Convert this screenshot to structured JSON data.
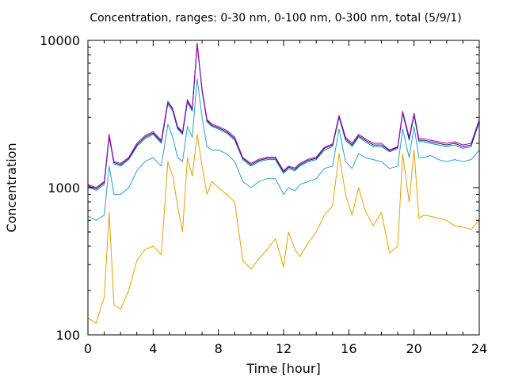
{
  "chart_data": {
    "type": "line",
    "title": "Concentration, ranges: 0-30 nm, 0-100 nm, 0-300 nm, total (5/9/1)",
    "xlabel": "Time [hour]",
    "ylabel": "Concentration",
    "xlim": [
      0,
      24
    ],
    "ylim": [
      100,
      10000
    ],
    "yscale": "log",
    "grid": false,
    "legend": "none",
    "x_ticks": [
      0,
      4,
      8,
      12,
      16,
      20,
      24
    ],
    "x_tick_labels": [
      "0",
      "4",
      "8",
      "12",
      "16",
      "20",
      "24"
    ],
    "y_ticks": [
      100,
      1000,
      10000
    ],
    "y_tick_labels": [
      "100",
      "1000",
      "10000"
    ],
    "x": [
      0,
      0.5,
      1,
      1.3,
      1.6,
      2,
      2.5,
      3,
      3.5,
      4,
      4.5,
      4.9,
      5.2,
      5.5,
      5.8,
      6.1,
      6.4,
      6.7,
      7.0,
      7.3,
      7.6,
      8.0,
      8.5,
      9.0,
      9.5,
      10,
      10.5,
      11,
      11.5,
      12,
      12.3,
      12.7,
      13,
      13.5,
      14,
      14.5,
      15,
      15.4,
      15.8,
      16.2,
      16.6,
      17,
      17.5,
      18,
      18.5,
      19,
      19.3,
      19.7,
      20,
      20.3,
      20.6,
      21,
      21.5,
      22,
      22.5,
      23,
      23.5,
      24
    ],
    "series": [
      {
        "color": "#e6a000",
        "values": [
          130,
          120,
          180,
          680,
          160,
          150,
          200,
          320,
          380,
          400,
          350,
          1500,
          1200,
          750,
          500,
          1600,
          1200,
          2300,
          1400,
          900,
          1100,
          1000,
          900,
          800,
          320,
          280,
          330,
          380,
          450,
          290,
          500,
          380,
          340,
          420,
          500,
          650,
          750,
          1700,
          900,
          650,
          1000,
          700,
          550,
          680,
          360,
          400,
          1700,
          800,
          1800,
          620,
          650,
          640,
          620,
          600,
          550,
          540,
          520,
          600
        ]
      },
      {
        "color": "#2aa0c8",
        "values": [
          640,
          600,
          650,
          1400,
          900,
          900,
          1000,
          1300,
          1500,
          1600,
          1400,
          2700,
          2200,
          1600,
          1500,
          2600,
          2200,
          5500,
          3000,
          1900,
          1800,
          1800,
          1700,
          1500,
          1100,
          1000,
          1100,
          1150,
          1150,
          900,
          1000,
          950,
          1050,
          1100,
          1150,
          1350,
          1400,
          2500,
          1500,
          1350,
          1700,
          1600,
          1550,
          1500,
          1350,
          1400,
          2500,
          1600,
          2600,
          1600,
          1600,
          1650,
          1550,
          1500,
          1550,
          1500,
          1550,
          1800
        ]
      },
      {
        "color": "#009090",
        "values": [
          1010,
          960,
          1050,
          2200,
          1450,
          1400,
          1550,
          1900,
          2150,
          2300,
          2000,
          3700,
          3300,
          2500,
          2300,
          3800,
          3300,
          9300,
          4500,
          2800,
          2600,
          2500,
          2350,
          2100,
          1550,
          1400,
          1500,
          1550,
          1550,
          1250,
          1350,
          1300,
          1400,
          1500,
          1550,
          1800,
          1900,
          3000,
          2100,
          1900,
          2200,
          2050,
          1900,
          1900,
          1750,
          1850,
          3200,
          2100,
          3100,
          2050,
          2050,
          2000,
          1950,
          1900,
          1950,
          1850,
          1900,
          2800
        ]
      },
      {
        "color": "#1a1a6e",
        "values": [
          1030,
          980,
          1080,
          2250,
          1480,
          1430,
          1580,
          1950,
          2200,
          2350,
          2050,
          3800,
          3400,
          2550,
          2350,
          3900,
          3400,
          9500,
          4600,
          2850,
          2650,
          2550,
          2400,
          2150,
          1580,
          1430,
          1530,
          1580,
          1580,
          1280,
          1380,
          1330,
          1430,
          1530,
          1580,
          1850,
          1950,
          3050,
          2150,
          1950,
          2250,
          2100,
          1950,
          1950,
          1780,
          1880,
          3250,
          2150,
          3150,
          2100,
          2100,
          2050,
          2000,
          1950,
          2000,
          1900,
          1950,
          2850
        ]
      },
      {
        "color": "#b000b0",
        "values": [
          1050,
          1000,
          1100,
          2300,
          1500,
          1460,
          1600,
          2000,
          2250,
          2400,
          2100,
          3850,
          3450,
          2600,
          2400,
          3950,
          3450,
          9600,
          4650,
          2900,
          2700,
          2600,
          2450,
          2200,
          1600,
          1460,
          1560,
          1610,
          1610,
          1300,
          1400,
          1360,
          1460,
          1560,
          1610,
          1880,
          1980,
          3100,
          2200,
          2000,
          2300,
          2150,
          2000,
          2000,
          1800,
          1900,
          3300,
          2200,
          3200,
          2150,
          2150,
          2100,
          2050,
          2000,
          2050,
          1950,
          2000,
          2900
        ]
      }
    ]
  }
}
